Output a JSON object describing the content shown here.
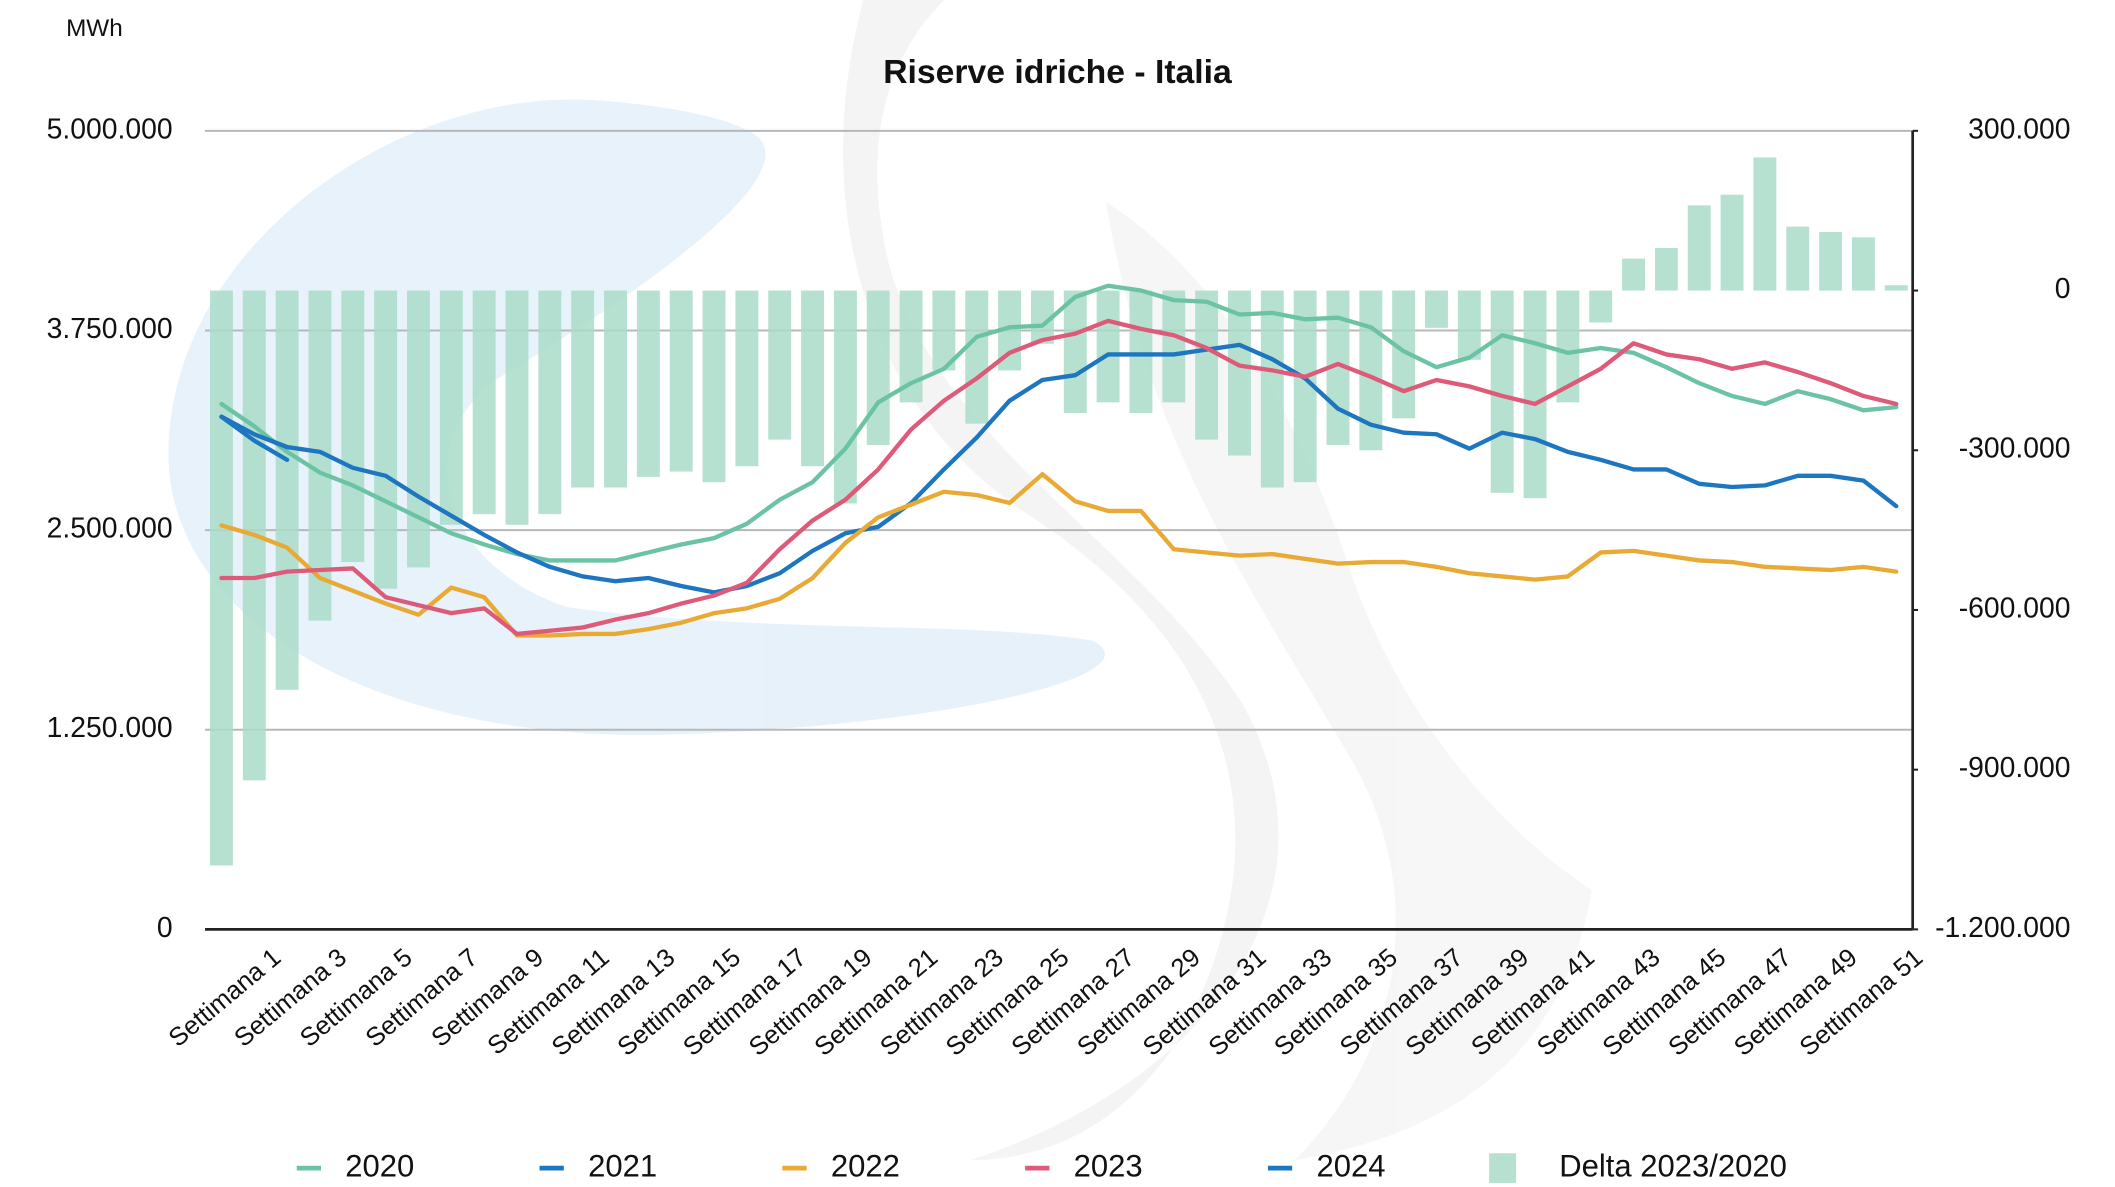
{
  "chart_data": {
    "type": "combo",
    "title": "Riserve idriche - Italia",
    "y_label": "MWh",
    "categories": [
      "Settimana 1",
      null,
      "Settimana 3",
      null,
      "Settimana 5",
      null,
      "Settimana 7",
      null,
      "Settimana 9",
      null,
      "Settimana 11",
      null,
      "Settimana 13",
      null,
      "Settimana 15",
      null,
      "Settimana 17",
      null,
      "Settimana 19",
      null,
      "Settimana 21",
      null,
      "Settimana 23",
      null,
      "Settimana 25",
      null,
      "Settimana 27",
      null,
      "Settimana 29",
      null,
      "Settimana 31",
      null,
      "Settimana 33",
      null,
      "Settimana 35",
      null,
      "Settimana 37",
      null,
      "Settimana 39",
      null,
      "Settimana 41",
      null,
      "Settimana 43",
      null,
      "Settimana 45",
      null,
      "Settimana 47",
      null,
      "Settimana 49",
      null,
      "Settimana 51",
      null
    ],
    "ylim": [
      0,
      5000000
    ],
    "yticks": [
      0,
      {
        "value": 1250000,
        "label": "1.250.000"
      },
      {
        "value": 2500000,
        "label": "2.500.000"
      },
      {
        "value": 3750000,
        "label": "3.750.000"
      },
      {
        "value": 5000000,
        "label": "5.000.000"
      }
    ],
    "y2lim": [
      -1200000,
      300000
    ],
    "y2ticks": [
      {
        "value": -1200000,
        "label": "-1.200.000"
      },
      {
        "value": -900000,
        "label": "-900.000"
      },
      {
        "value": -600000,
        "label": "-600.000"
      },
      {
        "value": -300000,
        "label": "-300.000"
      },
      0,
      {
        "value": 300000,
        "label": "300.000"
      }
    ],
    "grid": true,
    "legend": "bottom",
    "series": [
      {
        "name": "Delta 2023/2020",
        "type": "bar",
        "axis": "y2",
        "color": "#a9dcc9",
        "values": [
          -1080000,
          -920000,
          -750000,
          -620000,
          -510000,
          -560000,
          -520000,
          -440000,
          -420000,
          -440000,
          -420000,
          -370000,
          -370000,
          -350000,
          -340000,
          -360000,
          -330000,
          -280000,
          -330000,
          -400000,
          -290000,
          -210000,
          -150000,
          -250000,
          -150000,
          -100000,
          -230000,
          -210000,
          -230000,
          -210000,
          -280000,
          -310000,
          -370000,
          -360000,
          -290000,
          -300000,
          -240000,
          -70000,
          -130000,
          -380000,
          -390000,
          -210000,
          -60000,
          60000,
          80000,
          160000,
          180000,
          250000,
          120000,
          110000,
          100000,
          10000
        ]
      },
      {
        "name": "2020",
        "type": "line",
        "color": "#6cc3a4",
        "values": [
          3290000,
          3150000,
          2990000,
          2860000,
          2780000,
          2680000,
          2580000,
          2480000,
          2410000,
          2350000,
          2310000,
          2310000,
          2310000,
          2360000,
          2410000,
          2450000,
          2540000,
          2690000,
          2800000,
          3010000,
          3300000,
          3420000,
          3510000,
          3710000,
          3770000,
          3780000,
          3960000,
          4030000,
          4000000,
          3940000,
          3930000,
          3850000,
          3860000,
          3820000,
          3830000,
          3770000,
          3620000,
          3520000,
          3580000,
          3720000,
          3670000,
          3610000,
          3640000,
          3610000,
          3520000,
          3420000,
          3340000,
          3290000,
          3370000,
          3320000,
          3250000,
          3270000
        ]
      },
      {
        "name": "2021",
        "type": "line",
        "color": "#1d76bf",
        "values": [
          3210000,
          3100000,
          3020000,
          2990000,
          2890000,
          2840000,
          2710000,
          2590000,
          2470000,
          2360000,
          2270000,
          2210000,
          2180000,
          2200000,
          2150000,
          2110000,
          2150000,
          2230000,
          2370000,
          2480000,
          2520000,
          2670000,
          2880000,
          3080000,
          3310000,
          3440000,
          3470000,
          3600000,
          3600000,
          3600000,
          3630000,
          3660000,
          3570000,
          3450000,
          3260000,
          3160000,
          3110000,
          3100000,
          3010000,
          3110000,
          3070000,
          2990000,
          2940000,
          2880000,
          2880000,
          2790000,
          2770000,
          2780000,
          2840000,
          2840000,
          2810000,
          2650000
        ]
      },
      {
        "name": "2022",
        "type": "line",
        "color": "#e9a935",
        "values": [
          2530000,
          2470000,
          2390000,
          2200000,
          2120000,
          2040000,
          1970000,
          2140000,
          2080000,
          1840000,
          1840000,
          1850000,
          1850000,
          1880000,
          1920000,
          1980000,
          2010000,
          2070000,
          2200000,
          2420000,
          2580000,
          2660000,
          2740000,
          2720000,
          2670000,
          2850000,
          2680000,
          2620000,
          2620000,
          2380000,
          2360000,
          2340000,
          2350000,
          2320000,
          2290000,
          2300000,
          2300000,
          2270000,
          2230000,
          2210000,
          2190000,
          2210000,
          2360000,
          2370000,
          2340000,
          2310000,
          2300000,
          2270000,
          2260000,
          2250000,
          2270000,
          2240000
        ]
      },
      {
        "name": "2023",
        "type": "line",
        "color": "#dd5b78",
        "values": [
          2200000,
          2200000,
          2240000,
          2250000,
          2260000,
          2080000,
          2030000,
          1980000,
          2010000,
          1850000,
          1870000,
          1890000,
          1940000,
          1980000,
          2040000,
          2090000,
          2170000,
          2380000,
          2560000,
          2690000,
          2880000,
          3130000,
          3310000,
          3450000,
          3610000,
          3690000,
          3730000,
          3810000,
          3760000,
          3720000,
          3640000,
          3530000,
          3500000,
          3460000,
          3540000,
          3460000,
          3370000,
          3440000,
          3400000,
          3340000,
          3290000,
          3400000,
          3510000,
          3670000,
          3600000,
          3570000,
          3510000,
          3550000,
          3490000,
          3420000,
          3340000,
          3290000
        ]
      },
      {
        "name": "2024",
        "type": "line",
        "color": "#1d76bf",
        "values": [
          3210000,
          3060000,
          2940000,
          null,
          null,
          null,
          null,
          null,
          null,
          null,
          null,
          null,
          null,
          null,
          null,
          null,
          null,
          null,
          null,
          null,
          null,
          null,
          null,
          null,
          null,
          null,
          null,
          null,
          null,
          null,
          null,
          null,
          null,
          null,
          null,
          null,
          null,
          null,
          null,
          null,
          null,
          null,
          null,
          null,
          null,
          null,
          null,
          null,
          null,
          null,
          null,
          null
        ]
      }
    ]
  }
}
